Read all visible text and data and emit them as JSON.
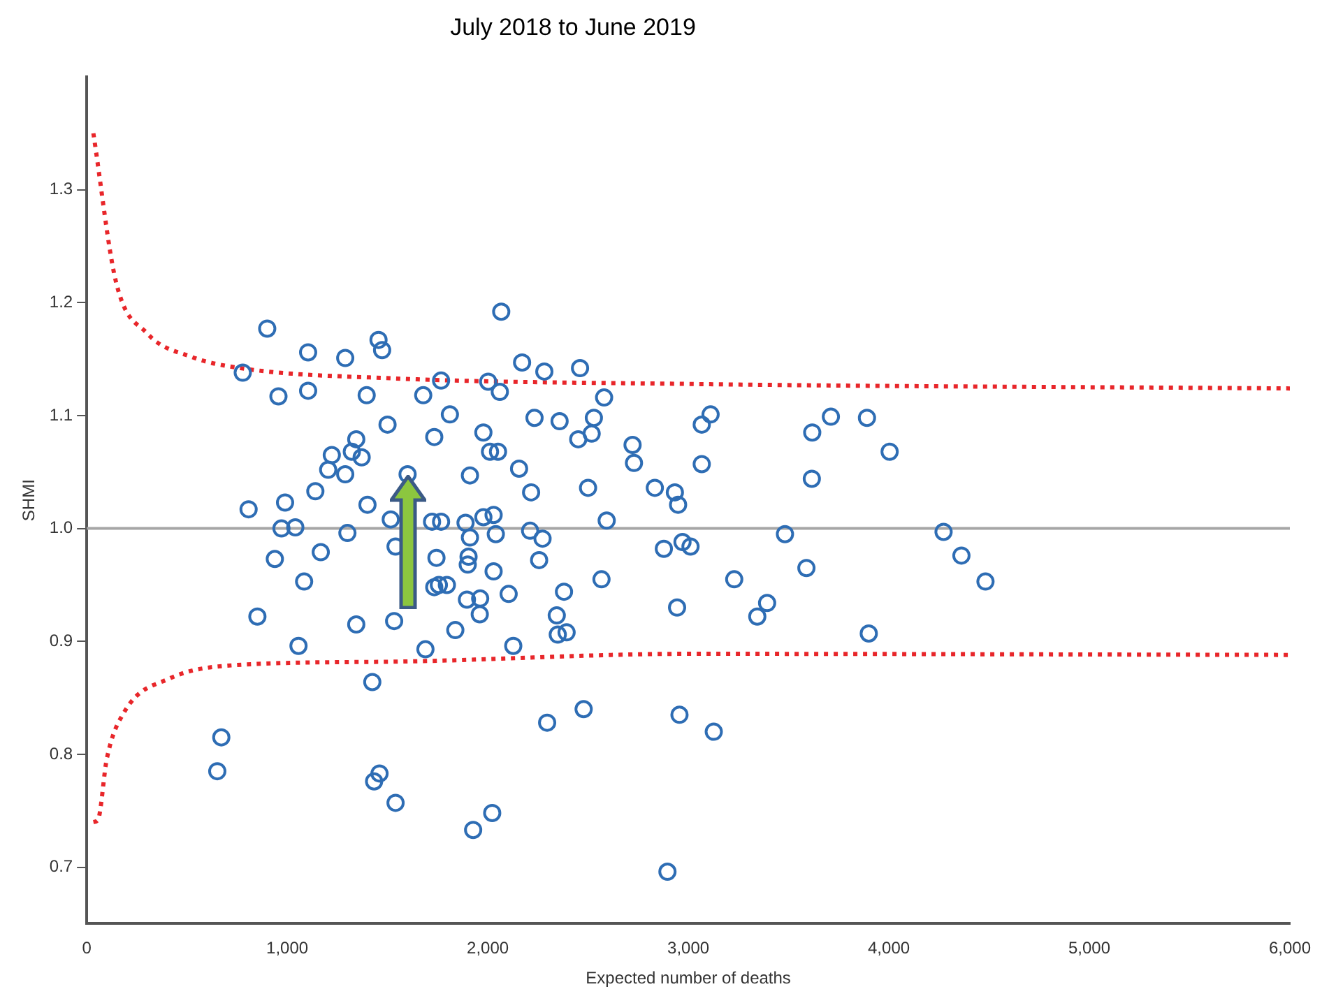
{
  "chart_data": {
    "type": "scatter",
    "title": "July 2018 to June 2019",
    "xlabel": "Expected number of deaths",
    "ylabel": "SHMI",
    "xlim": [
      0,
      6000
    ],
    "xticks": [
      0,
      {
        "value": 1000,
        "label": "1,000"
      },
      {
        "value": 2000,
        "label": "2,000"
      },
      {
        "value": 3000,
        "label": "3,000"
      },
      {
        "value": 4000,
        "label": "4,000"
      },
      {
        "value": 5000,
        "label": "5,000"
      },
      {
        "value": 6000,
        "label": "6,000"
      }
    ],
    "ylim": [
      0.65,
      1.4
    ],
    "yticks": [
      0.7,
      0.8,
      0.9,
      {
        "value": 1,
        "label": "1.0"
      },
      1.1,
      1.2,
      1.3
    ],
    "grid": false,
    "legend": false,
    "marker": "circle",
    "ref_lines": [
      {
        "axis": "y",
        "value": 1,
        "color": "#a6a6a6"
      }
    ],
    "series": [
      {
        "color": "#2e6db4",
        "x": [
          900,
          1455,
          1473,
          1104,
          1289,
          778,
          956,
          1104,
          1396,
          1500,
          1344,
          1222,
          1322,
          1371,
          1204,
          1289,
          1140,
          1400,
          807,
          989,
          971,
          1040,
          1300,
          1516,
          1540,
          938,
          1167,
          1084,
          851,
          1344,
          1533,
          1056,
          1424,
          671,
          651,
          1460,
          1433,
          1540,
          2067,
          2171,
          2282,
          2460,
          1767,
          2002,
          2060,
          1678,
          2580,
          1811,
          2233,
          2358,
          2529,
          2518,
          2451,
          1978,
          1733,
          2011,
          2051,
          2722,
          2729,
          2156,
          1600,
          1911,
          2216,
          2500,
          2833,
          2933,
          2949,
          2593,
          1722,
          1767,
          1978,
          2029,
          1889,
          1911,
          2040,
          2211,
          2273,
          2878,
          2971,
          3011,
          1744,
          1904,
          1900,
          2256,
          2029,
          1733,
          1756,
          1796,
          2567,
          1896,
          1962,
          1960,
          2104,
          2380,
          2944,
          1838,
          2344,
          2349,
          2393,
          1689,
          2127,
          2296,
          2478,
          2956,
          1927,
          2022,
          2896,
          3067,
          3111,
          3067,
          3482,
          3229,
          3589,
          3393,
          3344,
          3127,
          3618,
          3616,
          3711,
          3891,
          4004,
          3900,
          4273,
          4362,
          4482
        ],
        "values": [
          1.177,
          1.167,
          1.158,
          1.156,
          1.151,
          1.138,
          1.117,
          1.122,
          1.118,
          1.092,
          1.079,
          1.065,
          1.068,
          1.063,
          1.052,
          1.048,
          1.033,
          1.021,
          1.017,
          1.023,
          1.0,
          1.001,
          0.996,
          1.008,
          0.984,
          0.973,
          0.979,
          0.953,
          0.922,
          0.915,
          0.918,
          0.896,
          0.864,
          0.815,
          0.785,
          0.783,
          0.776,
          0.757,
          1.192,
          1.147,
          1.139,
          1.142,
          1.131,
          1.13,
          1.121,
          1.118,
          1.116,
          1.101,
          1.098,
          1.095,
          1.098,
          1.084,
          1.079,
          1.085,
          1.081,
          1.068,
          1.068,
          1.074,
          1.058,
          1.053,
          1.048,
          1.047,
          1.032,
          1.036,
          1.036,
          1.032,
          1.021,
          1.007,
          1.006,
          1.006,
          1.01,
          1.012,
          1.005,
          0.992,
          0.995,
          0.998,
          0.991,
          0.982,
          0.988,
          0.984,
          0.974,
          0.975,
          0.968,
          0.972,
          0.962,
          0.948,
          0.95,
          0.95,
          0.955,
          0.937,
          0.938,
          0.924,
          0.942,
          0.944,
          0.93,
          0.91,
          0.923,
          0.906,
          0.908,
          0.893,
          0.896,
          0.828,
          0.84,
          0.835,
          0.733,
          0.748,
          0.696,
          1.092,
          1.101,
          1.057,
          0.995,
          0.955,
          0.965,
          0.934,
          0.922,
          0.82,
          1.085,
          1.044,
          1.099,
          1.098,
          1.068,
          0.907,
          0.997,
          0.976,
          0.953
        ]
      },
      {
        "type": "line",
        "color": "#e8262a",
        "marker": "none",
        "line_style": "dotted",
        "x": [
          33,
          145,
          300,
          522,
          767,
          1520,
          3000,
          6000
        ],
        "values": [
          1.35,
          1.219,
          1.173,
          1.152,
          1.142,
          1.133,
          1.128,
          1.124
        ]
      },
      {
        "type": "line",
        "color": "#e8262a",
        "marker": "none",
        "line_style": "dotted",
        "x": [
          33,
          56,
          100,
          189,
          411,
          744,
          1520,
          3000,
          6000
        ],
        "values": [
          0.74,
          0.742,
          0.796,
          0.838,
          0.867,
          0.879,
          0.882,
          0.889,
          0.888
        ]
      }
    ]
  }
}
